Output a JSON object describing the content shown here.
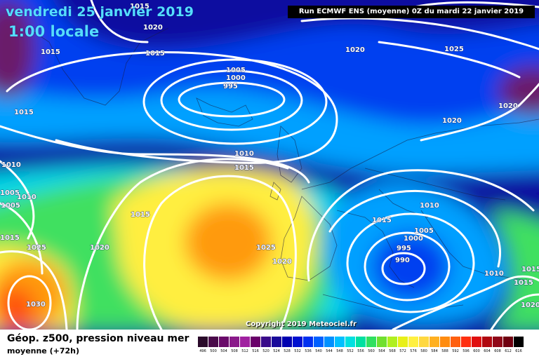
{
  "header": {
    "date": "vendredi 25 janvier 2019",
    "time": "1:00 locale",
    "run": "Run ECMWF ENS (moyenne) 0Z du mardi 22 janvier 2019"
  },
  "copyright": "Copyright 2019 Meteociel.fr",
  "legend": {
    "title": "Géop. z500, pression niveau mer",
    "subtitle": "moyenne   (+72h)",
    "scale_values": [
      "496",
      "500",
      "504",
      "508",
      "512",
      "516",
      "520",
      "524",
      "528",
      "532",
      "536",
      "540",
      "544",
      "548",
      "552",
      "556",
      "560",
      "564",
      "568",
      "572",
      "576",
      "580",
      "584",
      "588",
      "592",
      "596",
      "600",
      "604",
      "608",
      "612",
      "616"
    ],
    "scale_colors": [
      "#2a0a2a",
      "#4a0a4a",
      "#6a0a6a",
      "#8a1a8a",
      "#a020a0",
      "#6a006a",
      "#3a0a8a",
      "#1a0a9a",
      "#0000b0",
      "#0010d0",
      "#0030f0",
      "#0060ff",
      "#0090ff",
      "#00c0ff",
      "#00e0e0",
      "#00e0a0",
      "#30e060",
      "#70e030",
      "#b0f020",
      "#e8f018",
      "#fff040",
      "#ffd840",
      "#ffb020",
      "#ff8c10",
      "#ff6010",
      "#ff3010",
      "#e01010",
      "#b00810",
      "#900818",
      "#700010",
      "#000000"
    ]
  },
  "map": {
    "colors": {
      "deep_purple": "#6a1a6a",
      "navy": "#0a10a0",
      "blue": "#0040f0",
      "light_blue": "#00a0ff",
      "cyan": "#00d8e8",
      "green": "#40e060",
      "yellow": "#ffee40",
      "orange": "#ff9a10",
      "red": "#ff5010"
    },
    "isobar_labels": [
      "1015",
      "1020",
      "1015",
      "1015",
      "1005",
      "1000",
      "995",
      "1020",
      "1025",
      "1015",
      "1020",
      "1020",
      "1010",
      "1015",
      "1010",
      "1005",
      "1010",
      "1005",
      "1015",
      "1025",
      "1020",
      "1015",
      "1025",
      "1020",
      "1030",
      "1010",
      "1015",
      "1005",
      "1000",
      "995",
      "990",
      "1010",
      "1015",
      "1015",
      "1020"
    ]
  }
}
